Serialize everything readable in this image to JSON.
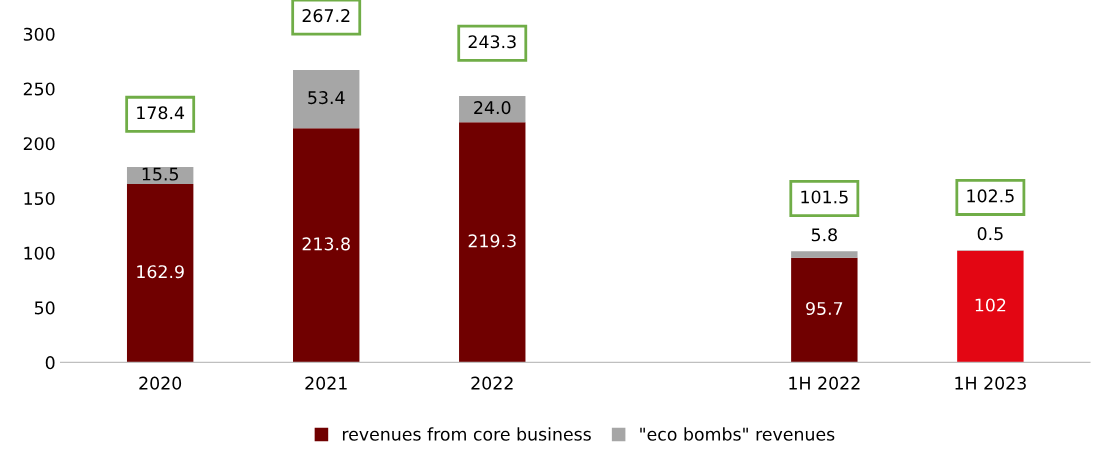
{
  "chart_data": {
    "type": "bar",
    "stacked": true,
    "categories": [
      "2020",
      "2021",
      "2022",
      null,
      "1H 2022",
      "1H 2023"
    ],
    "series": [
      {
        "name": "revenues from core business",
        "color": "#700000",
        "colors": [
          "#700000",
          "#700000",
          "#700000",
          "#700000",
          "#700000",
          "#e30613"
        ],
        "values": [
          162.9,
          213.8,
          219.3,
          null,
          95.7,
          102
        ],
        "value_labels": [
          "162.9",
          "213.8",
          "219.3",
          null,
          "95.7",
          "102"
        ]
      },
      {
        "name": "\"eco bombs\" revenues",
        "color": "#a6a6a6",
        "values": [
          15.5,
          53.4,
          24.0,
          null,
          5.8,
          0.5
        ],
        "value_labels": [
          "15.5",
          "53.4",
          "24.0",
          null,
          "5.8",
          "0.5"
        ]
      }
    ],
    "totals": [
      "178.4",
      "267.2",
      "243.3",
      null,
      "101.5",
      "102.5"
    ],
    "ylim": [
      0,
      300
    ],
    "yticks": [
      0,
      50,
      100,
      150,
      200,
      250,
      300
    ],
    "grid": false,
    "legend": "bottom"
  }
}
